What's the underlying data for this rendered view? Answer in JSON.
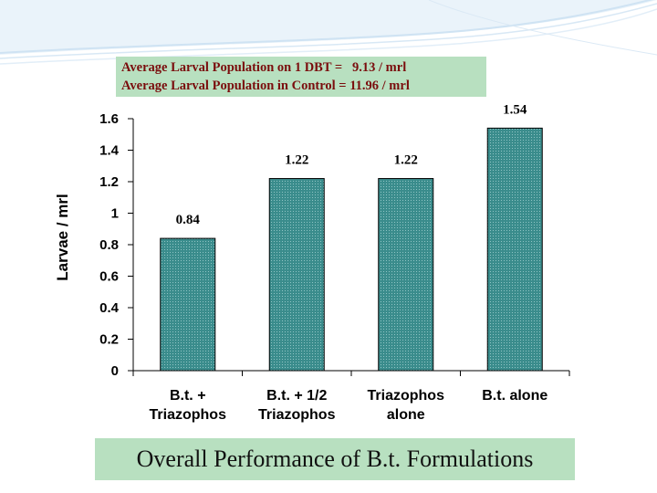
{
  "notes": {
    "line1": "Average Larval Population on 1 DBT =   9.13 / mrl",
    "line2": "Average Larval Population in Control = 11.96 / mrl"
  },
  "footer_title": "Overall Performance of B.t. Formulations",
  "colors": {
    "bar_fill": "#3a8c8c",
    "note_bg": "#b8e0c0",
    "note_text": "#7a0d0d",
    "decor": "#cfe3f3"
  },
  "chart_data": {
    "type": "bar",
    "ylabel": "Larvae / mrl",
    "ylim": [
      0,
      1.6
    ],
    "yticks": [
      "0",
      "0.2",
      "0.4",
      "0.6",
      "0.8",
      "1",
      "1.2",
      "1.4",
      "1.6"
    ],
    "categories": [
      [
        "B.t. +",
        "Triazophos"
      ],
      [
        "B.t. + 1/2",
        "Triazophos"
      ],
      [
        "Triazophos",
        "alone"
      ],
      [
        "B.t. alone"
      ]
    ],
    "values": [
      0.84,
      1.22,
      1.22,
      1.54
    ],
    "data_labels": [
      "0.84",
      "1.22",
      "1.22",
      "1.54"
    ],
    "grid": false,
    "legend": "none"
  }
}
